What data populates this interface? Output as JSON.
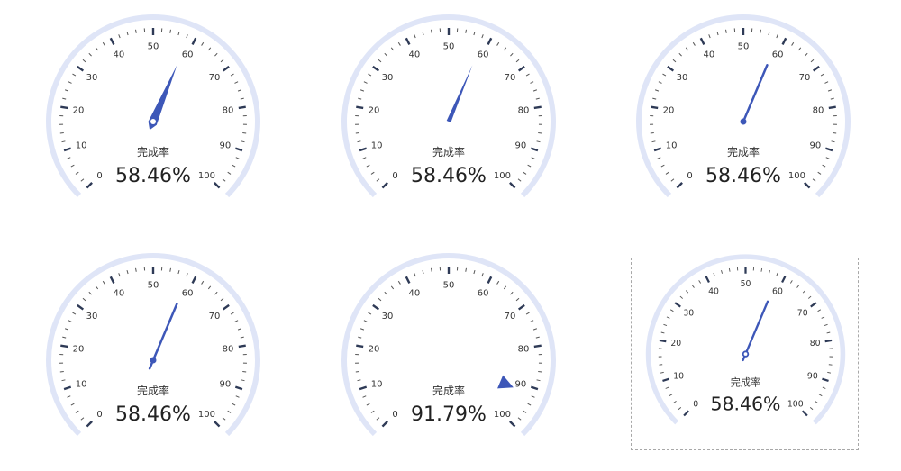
{
  "colors": {
    "arc": "#dfe5f7",
    "pointer": "#3d57b8",
    "tick_major": "#2e3a56",
    "tick_minor": "#555555",
    "text": "#333333",
    "value_text": "#222222"
  },
  "chart_data": [
    {
      "type": "gauge",
      "title": "完成率",
      "value": 58.46,
      "value_label": "58.46%",
      "min": 0,
      "max": 100,
      "tick_labels": [
        "0",
        "10",
        "20",
        "30",
        "40",
        "50",
        "60",
        "70",
        "80",
        "90",
        "100"
      ],
      "pointer_style": "pin-ring"
    },
    {
      "type": "gauge",
      "title": "完成率",
      "value": 58.46,
      "value_label": "58.46%",
      "min": 0,
      "max": 100,
      "tick_labels": [
        "0",
        "10",
        "20",
        "30",
        "40",
        "50",
        "60",
        "70",
        "80",
        "90",
        "100"
      ],
      "pointer_style": "needle"
    },
    {
      "type": "gauge",
      "title": "完成率",
      "value": 58.46,
      "value_label": "58.46%",
      "min": 0,
      "max": 100,
      "tick_labels": [
        "0",
        "10",
        "20",
        "30",
        "40",
        "50",
        "60",
        "70",
        "80",
        "90",
        "100"
      ],
      "pointer_style": "line-dot"
    },
    {
      "type": "gauge",
      "title": "完成率",
      "value": 58.46,
      "value_label": "58.46%",
      "min": 0,
      "max": 100,
      "tick_labels": [
        "0",
        "10",
        "20",
        "30",
        "40",
        "50",
        "60",
        "70",
        "80",
        "90",
        "100"
      ],
      "pointer_style": "line-tail"
    },
    {
      "type": "gauge",
      "title": "完成率",
      "value": 91.79,
      "value_label": "91.79%",
      "min": 0,
      "max": 100,
      "tick_labels": [
        "0",
        "10",
        "20",
        "30",
        "40",
        "50",
        "60",
        "70",
        "80",
        "90",
        "100"
      ],
      "pointer_style": "triangle-marker"
    },
    {
      "type": "gauge",
      "title": "完成率",
      "value": 58.46,
      "value_label": "58.46%",
      "min": 0,
      "max": 100,
      "tick_labels": [
        "0",
        "10",
        "20",
        "30",
        "40",
        "50",
        "60",
        "70",
        "80",
        "90",
        "100"
      ],
      "pointer_style": "line-ring"
    }
  ]
}
